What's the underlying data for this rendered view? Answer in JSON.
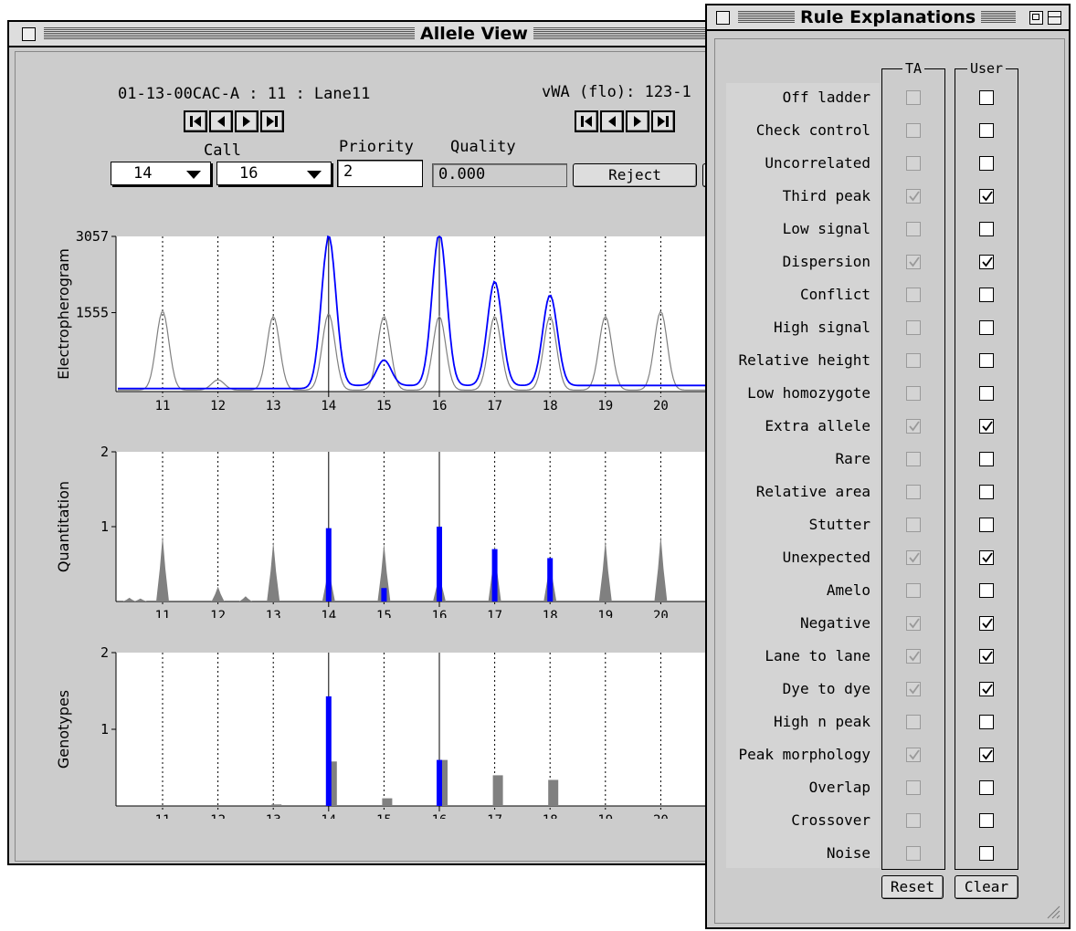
{
  "allele_view": {
    "title": "Allele View",
    "sample_id": "01-13-00CAC-A : 11 : Lane11",
    "locus": "vWA (flo): 123-1",
    "call_label": "Call",
    "priority_label": "Priority",
    "quality_label": "Quality",
    "call1": "14",
    "call2": "16",
    "priority_value": "2",
    "quality_value": "0.000",
    "reject_label": "Reject",
    "nav_icons": [
      "first-icon",
      "prev-icon",
      "next-icon",
      "last-icon"
    ]
  },
  "charts": [
    {
      "ylabel": "Electropherogram",
      "yticks": [
        "3057",
        "1555"
      ],
      "ymax": 3057
    },
    {
      "ylabel": "Quantitation",
      "yticks": [
        "2",
        "1"
      ],
      "ymax": 2
    },
    {
      "ylabel": "Genotypes",
      "yticks": [
        "2",
        "1"
      ],
      "ymax": 2
    }
  ],
  "chart_data": [
    {
      "type": "line",
      "ylabel": "Electropherogram",
      "x_categories": [
        "11",
        "12",
        "13",
        "14",
        "15",
        "16",
        "17",
        "18",
        "19",
        "20"
      ],
      "ylim": [
        0,
        3057
      ],
      "called_alleles": [
        "14",
        "16"
      ],
      "series": [
        {
          "name": "",
          "color": "#808080",
          "peaks": [
            {
              "x": 11,
              "h": 1550
            },
            {
              "x": 12,
              "h": 200
            },
            {
              "x": 13,
              "h": 1450
            },
            {
              "x": 14,
              "h": 1500
            },
            {
              "x": 15,
              "h": 1450
            },
            {
              "x": 16,
              "h": 1450
            },
            {
              "x": 17,
              "h": 1450
            },
            {
              "x": 18,
              "h": 1450
            },
            {
              "x": 19,
              "h": 1450
            },
            {
              "x": 20,
              "h": 1550
            }
          ]
        },
        {
          "name": "",
          "color": "#0000ff",
          "peaks": [
            {
              "x": 14,
              "h": 2950
            },
            {
              "x": 15,
              "h": 500
            },
            {
              "x": 16,
              "h": 3000
            },
            {
              "x": 17,
              "h": 2050
            },
            {
              "x": 18,
              "h": 1780
            }
          ]
        }
      ]
    },
    {
      "type": "bar",
      "ylabel": "Quantitation",
      "x_categories": [
        "11",
        "12",
        "13",
        "14",
        "15",
        "16",
        "17",
        "18",
        "19",
        "20"
      ],
      "ylim": [
        0,
        2
      ],
      "called_alleles": [
        "14",
        "16"
      ],
      "grey": [
        {
          "x": 10.4,
          "v": 0.05
        },
        {
          "x": 10.6,
          "v": 0.04
        },
        {
          "x": 11,
          "v": 0.88
        },
        {
          "x": 12,
          "v": 0.2
        },
        {
          "x": 12.5,
          "v": 0.07
        },
        {
          "x": 13,
          "v": 0.8
        },
        {
          "x": 14,
          "v": 0.5
        },
        {
          "x": 15,
          "v": 0.78
        },
        {
          "x": 16,
          "v": 0.4
        },
        {
          "x": 17,
          "v": 0.75
        },
        {
          "x": 18,
          "v": 0.58
        },
        {
          "x": 19,
          "v": 0.82
        },
        {
          "x": 20,
          "v": 0.88
        }
      ],
      "blue": [
        {
          "x": 14,
          "v": 0.98
        },
        {
          "x": 15,
          "v": 0.18
        },
        {
          "x": 16,
          "v": 1.0
        },
        {
          "x": 17,
          "v": 0.7
        },
        {
          "x": 18,
          "v": 0.58
        }
      ]
    },
    {
      "type": "bar",
      "ylabel": "Genotypes",
      "x_categories": [
        "11",
        "12",
        "13",
        "14",
        "15",
        "16",
        "17",
        "18",
        "19",
        "20"
      ],
      "ylim": [
        0,
        2
      ],
      "called_alleles": [
        "14",
        "16"
      ],
      "grey": [
        {
          "x": 13,
          "v": 0.02
        },
        {
          "x": 14,
          "v": 0.58
        },
        {
          "x": 15,
          "v": 0.1
        },
        {
          "x": 16,
          "v": 0.6
        },
        {
          "x": 17,
          "v": 0.4
        },
        {
          "x": 18,
          "v": 0.34
        }
      ],
      "blue": [
        {
          "x": 14,
          "v": 1.43
        },
        {
          "x": 16,
          "v": 0.6
        }
      ]
    }
  ],
  "rule_window": {
    "title": "Rule Explanations",
    "ta_header": "TA",
    "user_header": "User",
    "reset_label": "Reset",
    "clear_label": "Clear",
    "rules": [
      {
        "label": "Off ladder",
        "ta": false,
        "user": false
      },
      {
        "label": "Check control",
        "ta": false,
        "user": false
      },
      {
        "label": "Uncorrelated",
        "ta": false,
        "user": false
      },
      {
        "label": "Third peak",
        "ta": true,
        "user": true
      },
      {
        "label": "Low signal",
        "ta": false,
        "user": false
      },
      {
        "label": "Dispersion",
        "ta": true,
        "user": true
      },
      {
        "label": "Conflict",
        "ta": false,
        "user": false
      },
      {
        "label": "High signal",
        "ta": false,
        "user": false
      },
      {
        "label": "Relative height",
        "ta": false,
        "user": false
      },
      {
        "label": "Low homozygote",
        "ta": false,
        "user": false
      },
      {
        "label": "Extra allele",
        "ta": true,
        "user": true
      },
      {
        "label": "Rare",
        "ta": false,
        "user": false
      },
      {
        "label": "Relative area",
        "ta": false,
        "user": false
      },
      {
        "label": "Stutter",
        "ta": false,
        "user": false
      },
      {
        "label": "Unexpected",
        "ta": true,
        "user": true
      },
      {
        "label": "Amelo",
        "ta": false,
        "user": false
      },
      {
        "label": "Negative",
        "ta": true,
        "user": true
      },
      {
        "label": "Lane to lane",
        "ta": true,
        "user": true
      },
      {
        "label": "Dye to dye",
        "ta": true,
        "user": true
      },
      {
        "label": "High n peak",
        "ta": false,
        "user": false
      },
      {
        "label": "Peak morphology",
        "ta": true,
        "user": true
      },
      {
        "label": "Overlap",
        "ta": false,
        "user": false
      },
      {
        "label": "Crossover",
        "ta": false,
        "user": false
      },
      {
        "label": "Noise",
        "ta": false,
        "user": false
      }
    ]
  }
}
